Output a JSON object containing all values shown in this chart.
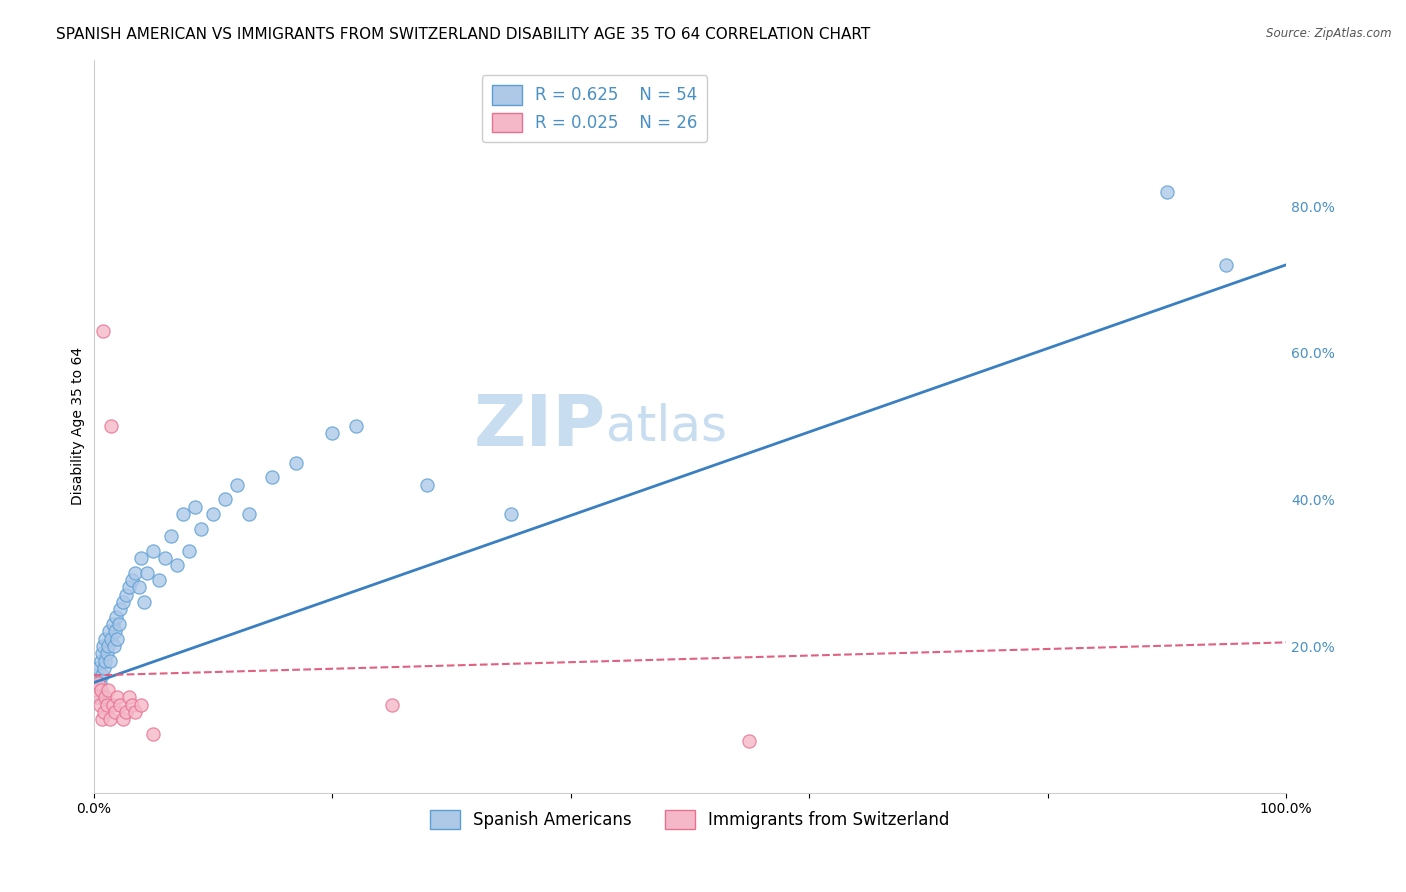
{
  "title": "SPANISH AMERICAN VS IMMIGRANTS FROM SWITZERLAND DISABILITY AGE 35 TO 64 CORRELATION CHART",
  "source": "Source: ZipAtlas.com",
  "ylabel": "Disability Age 35 to 64",
  "xlim": [
    0,
    1.0
  ],
  "ylim": [
    0,
    1.0
  ],
  "blue_label": "Spanish Americans",
  "pink_label": "Immigrants from Switzerland",
  "blue_R": "R = 0.625",
  "blue_N": "N = 54",
  "pink_R": "R = 0.025",
  "pink_N": "N = 26",
  "blue_scatter_x": [
    0.002,
    0.003,
    0.004,
    0.005,
    0.005,
    0.006,
    0.007,
    0.007,
    0.008,
    0.009,
    0.01,
    0.01,
    0.011,
    0.012,
    0.013,
    0.014,
    0.015,
    0.016,
    0.017,
    0.018,
    0.019,
    0.02,
    0.021,
    0.022,
    0.025,
    0.027,
    0.03,
    0.032,
    0.035,
    0.038,
    0.04,
    0.042,
    0.045,
    0.05,
    0.055,
    0.06,
    0.065,
    0.07,
    0.075,
    0.08,
    0.085,
    0.09,
    0.1,
    0.11,
    0.12,
    0.13,
    0.15,
    0.17,
    0.2,
    0.22,
    0.28,
    0.35,
    0.9,
    0.95
  ],
  "blue_scatter_y": [
    0.16,
    0.14,
    0.17,
    0.15,
    0.13,
    0.18,
    0.19,
    0.16,
    0.2,
    0.17,
    0.21,
    0.18,
    0.19,
    0.2,
    0.22,
    0.18,
    0.21,
    0.23,
    0.2,
    0.22,
    0.24,
    0.21,
    0.23,
    0.25,
    0.26,
    0.27,
    0.28,
    0.29,
    0.3,
    0.28,
    0.32,
    0.26,
    0.3,
    0.33,
    0.29,
    0.32,
    0.35,
    0.31,
    0.38,
    0.33,
    0.39,
    0.36,
    0.38,
    0.4,
    0.42,
    0.38,
    0.43,
    0.45,
    0.49,
    0.5,
    0.42,
    0.38,
    0.82,
    0.72
  ],
  "pink_scatter_x": [
    0.002,
    0.003,
    0.004,
    0.005,
    0.006,
    0.007,
    0.008,
    0.009,
    0.01,
    0.011,
    0.012,
    0.014,
    0.015,
    0.016,
    0.018,
    0.02,
    0.022,
    0.025,
    0.027,
    0.03,
    0.032,
    0.035,
    0.04,
    0.05,
    0.25,
    0.55
  ],
  "pink_scatter_y": [
    0.14,
    0.13,
    0.15,
    0.12,
    0.14,
    0.1,
    0.63,
    0.11,
    0.13,
    0.12,
    0.14,
    0.1,
    0.5,
    0.12,
    0.11,
    0.13,
    0.12,
    0.1,
    0.11,
    0.13,
    0.12,
    0.11,
    0.12,
    0.08,
    0.12,
    0.07
  ],
  "blue_line_x": [
    0.0,
    1.0
  ],
  "blue_line_y": [
    0.15,
    0.72
  ],
  "pink_line_x": [
    0.0,
    1.0
  ],
  "pink_line_y": [
    0.16,
    0.205
  ],
  "background_color": "#ffffff",
  "grid_color": "#dddddd",
  "blue_color": "#aec8e8",
  "pink_color": "#f4b8c8",
  "blue_edge_color": "#5a9fd4",
  "pink_edge_color": "#e87090",
  "blue_line_color": "#3a7fc1",
  "pink_line_color": "#e06080",
  "watermark_color": "#c8ddf0",
  "title_fontsize": 11,
  "axis_label_fontsize": 10,
  "tick_fontsize": 10,
  "legend_fontsize": 12,
  "marker_size": 90
}
